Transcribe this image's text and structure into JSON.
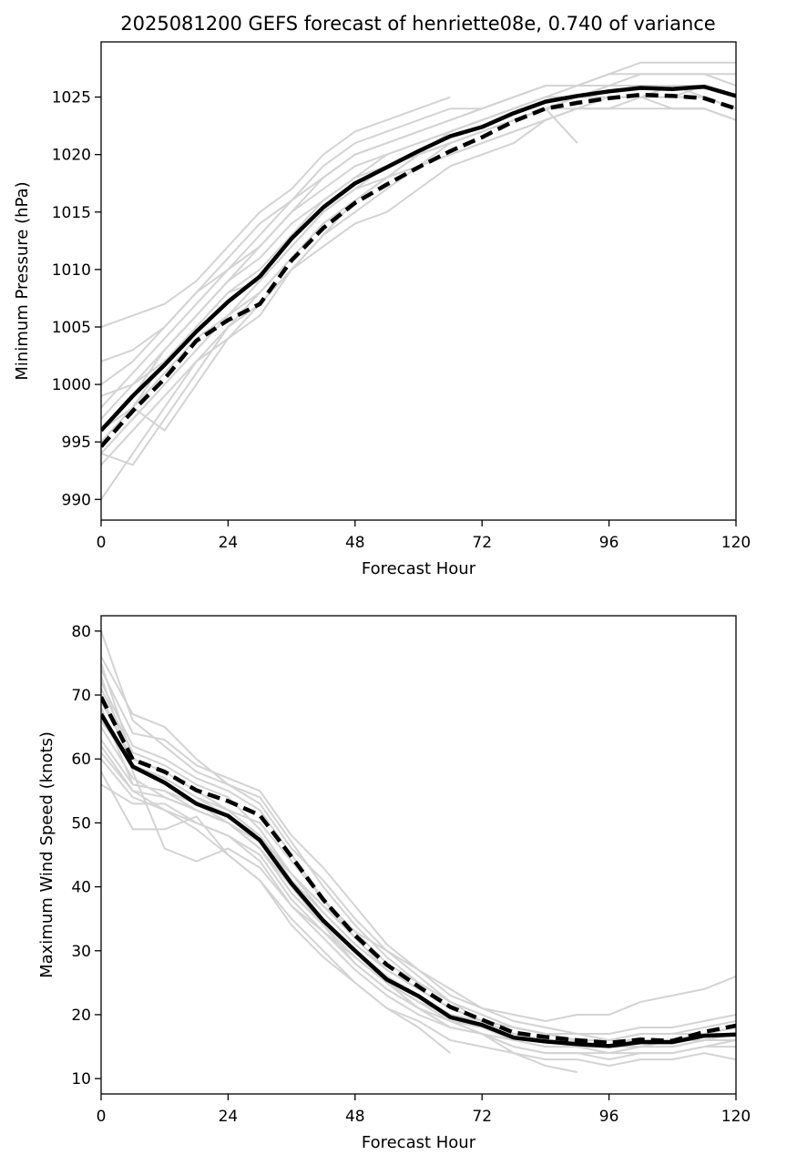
{
  "figure_title": "2025081200 GEFS forecast of henriette08e, 0.740 of variance",
  "colors": {
    "member": "#d3d3d3",
    "mean": "#000000",
    "axes": "#000000"
  },
  "chart_data": [
    {
      "type": "line",
      "xlabel": "Forecast Hour",
      "ylabel": "Minimum Pressure (hPa)",
      "xlim": [
        0,
        120
      ],
      "ylim": [
        988.2,
        1029.8
      ],
      "xticks": [
        0,
        24,
        48,
        72,
        96,
        120
      ],
      "yticks": [
        990,
        995,
        1000,
        1005,
        1010,
        1015,
        1020,
        1025
      ],
      "x": [
        0,
        6,
        12,
        18,
        24,
        30,
        36,
        42,
        48,
        54,
        60,
        66,
        72,
        78,
        84,
        90,
        96,
        102,
        108,
        114,
        120
      ],
      "series": [
        {
          "style": "solid",
          "values": [
            996,
            999,
            1001.7,
            1004.6,
            1007.2,
            1009.4,
            1012.7,
            1015.4,
            1017.5,
            1018.9,
            1020.3,
            1021.6,
            1022.4,
            1023.6,
            1024.6,
            1025.1,
            1025.5,
            1025.8,
            1025.7,
            1025.9,
            1025.1
          ]
        },
        {
          "style": "dashed",
          "values": [
            994.6,
            997.7,
            1000.5,
            1003.8,
            1005.6,
            1007,
            1010.8,
            1013.6,
            1015.8,
            1017.4,
            1018.9,
            1020.3,
            1021.5,
            1022.9,
            1024,
            1024.5,
            1024.9,
            1025.2,
            1025.1,
            1024.9,
            1024
          ]
        }
      ],
      "members": [
        [
          996,
          999,
          1003,
          1006,
          1009,
          1012,
          1015,
          1017,
          1019,
          1020,
          1021,
          1022,
          1023,
          1024,
          1025,
          1025,
          1026,
          1026,
          1026,
          1026,
          1025
        ],
        [
          994,
          997,
          1000,
          1003,
          1006,
          1008,
          1011,
          1014,
          1016,
          1018,
          1019,
          1021,
          1022,
          1023,
          1024,
          1024,
          1025,
          1025,
          1025,
          1025,
          1024
        ],
        [
          998,
          1001,
          1004,
          1007,
          1010,
          1013,
          1016,
          1018,
          1020,
          1021,
          1022,
          1023,
          1024,
          1025,
          1026,
          1026,
          1027,
          1027,
          1027,
          1027,
          1026
        ],
        [
          990,
          994,
          998,
          1002,
          1005,
          1007,
          1010,
          1013,
          1015,
          1017,
          1019,
          1020,
          1021,
          1022,
          1023,
          1024,
          1025,
          1025,
          1025,
          1026,
          1025
        ],
        [
          1005,
          1006,
          1007,
          1009,
          1012,
          1015,
          1017,
          1020,
          1022,
          1023,
          1024,
          1025,
          null,
          null,
          null,
          null,
          null,
          null,
          null,
          null,
          null
        ],
        [
          1002,
          1003,
          1005,
          1008,
          1010,
          1012,
          1015,
          1018,
          1020,
          1021,
          1022,
          1023,
          1024,
          1025,
          1026,
          1026,
          1027,
          1028,
          1028,
          1028,
          1028
        ],
        [
          993,
          996,
          999,
          1002,
          1004,
          1006,
          1010,
          1012,
          1014,
          1015,
          1017,
          1019,
          1020,
          1021,
          1023,
          1024,
          1024,
          1024,
          1024,
          1024,
          1023
        ],
        [
          997,
          1000,
          1002,
          1005,
          1008,
          1010,
          1013,
          1016,
          1018,
          1019,
          1020,
          1022,
          1023,
          1024,
          1025,
          1025,
          1026,
          1026,
          1026,
          1025,
          1024
        ],
        [
          995,
          998,
          1001,
          1004,
          1006,
          1009,
          1012,
          1015,
          1017,
          1018,
          1020,
          1021,
          1022,
          1023,
          1024,
          1021,
          null,
          null,
          null,
          null,
          null
        ],
        [
          999,
          1000,
          1003,
          1006,
          1009,
          1011,
          1014,
          1016,
          1018,
          1020,
          1021,
          1022,
          1023,
          1024,
          1025,
          1026,
          1026,
          1027,
          1027,
          1027,
          1027
        ],
        [
          994,
          993,
          997,
          1001,
          1005,
          1008,
          1011,
          1014,
          1016,
          1018,
          1020,
          1021,
          1022,
          1023,
          1024,
          1025,
          1025,
          1025,
          1026,
          1026,
          1025
        ],
        [
          996,
          998,
          996,
          1000,
          1004,
          1007,
          1010,
          1013,
          1016,
          1018,
          1019,
          1020,
          1021,
          1022,
          1023,
          1024,
          1024,
          1025,
          1025,
          1025,
          1024
        ],
        [
          1000,
          1002,
          1005,
          1008,
          1011,
          1014,
          1016,
          1019,
          1021,
          1022,
          1023,
          1024,
          1024,
          1025,
          1026,
          1026,
          1026,
          1026,
          1026,
          1026,
          1025
        ],
        [
          995,
          998,
          1002,
          1005,
          1008,
          1009,
          1012,
          1015,
          1017,
          1019,
          1020,
          1021,
          1022,
          1023,
          1024,
          1025,
          1025,
          1025,
          1024,
          1024,
          1023
        ]
      ]
    },
    {
      "type": "line",
      "xlabel": "Forecast Hour",
      "ylabel": "Maximum Wind Speed (knots)",
      "xlim": [
        0,
        120
      ],
      "ylim": [
        7.6,
        82.4
      ],
      "xticks": [
        0,
        24,
        48,
        72,
        96,
        120
      ],
      "yticks": [
        10,
        20,
        30,
        40,
        50,
        60,
        70,
        80
      ],
      "x": [
        0,
        6,
        12,
        18,
        24,
        30,
        36,
        42,
        48,
        54,
        60,
        66,
        72,
        78,
        84,
        90,
        96,
        102,
        108,
        114,
        120
      ],
      "series": [
        {
          "style": "solid",
          "values": [
            67,
            58.8,
            56.3,
            53,
            51.1,
            47.3,
            40.5,
            34.7,
            30,
            25.5,
            22.9,
            19.6,
            18.4,
            16.4,
            15.8,
            15.4,
            15.1,
            15.7,
            15.7,
            16.7,
            16.9
          ]
        },
        {
          "style": "dashed",
          "values": [
            69.7,
            59.9,
            58,
            55.1,
            53.4,
            51.2,
            44.7,
            38,
            32.4,
            27.8,
            24.4,
            21.2,
            19.2,
            17.2,
            16.5,
            16,
            15.6,
            16.1,
            15.9,
            17.3,
            18.3
          ]
        }
      ],
      "members": [
        [
          75,
          60,
          58,
          55,
          52,
          50,
          44,
          38,
          32,
          27,
          24,
          21,
          19,
          17,
          16,
          16,
          15,
          16,
          16,
          17,
          18
        ],
        [
          68,
          56,
          55,
          52,
          50,
          46,
          40,
          34,
          29,
          25,
          22,
          20,
          18,
          17,
          16,
          15,
          15,
          15,
          16,
          16,
          17
        ],
        [
          80,
          66,
          62,
          58,
          56,
          54,
          47,
          40,
          34,
          29,
          25,
          22,
          20,
          18,
          17,
          16,
          16,
          17,
          17,
          18,
          19
        ],
        [
          72,
          62,
          60,
          57,
          55,
          52,
          45,
          38,
          33,
          28,
          25,
          22,
          19,
          17,
          16,
          15,
          14,
          15,
          15,
          16,
          17
        ],
        [
          65,
          57,
          54,
          52,
          50,
          47,
          42,
          37,
          33,
          30,
          27,
          23,
          21,
          20,
          19,
          20,
          20,
          22,
          23,
          24,
          26
        ],
        [
          70,
          59,
          57,
          54,
          52,
          48,
          42,
          36,
          31,
          27,
          24,
          21,
          19,
          17,
          16,
          15,
          15,
          16,
          16,
          17,
          18
        ],
        [
          56,
          53,
          53,
          50,
          48,
          44,
          37,
          33,
          29,
          25,
          21,
          18,
          17,
          15,
          14,
          14,
          13,
          14,
          14,
          15,
          16
        ],
        [
          74,
          64,
          63,
          59,
          57,
          55,
          48,
          43,
          37,
          31,
          27,
          24,
          21,
          19,
          18,
          17,
          17,
          18,
          18,
          19,
          20
        ],
        [
          62,
          55,
          52,
          50,
          48,
          45,
          38,
          33,
          28,
          24,
          21,
          19,
          18,
          16,
          15,
          15,
          15,
          15,
          15,
          16,
          16
        ],
        [
          76,
          67,
          65,
          60,
          56,
          53,
          46,
          41,
          35,
          30,
          26,
          22,
          20,
          18,
          17,
          16,
          16,
          17,
          17,
          17,
          18
        ],
        [
          60,
          54,
          52,
          49,
          45,
          41,
          35,
          30,
          25,
          21,
          19,
          16,
          15,
          14,
          13,
          13,
          12,
          13,
          13,
          14,
          13
        ],
        [
          73,
          58,
          46,
          44,
          46,
          43,
          37,
          32,
          27,
          23,
          20,
          18,
          17,
          16,
          16,
          16,
          16,
          16,
          16,
          17,
          17
        ],
        [
          71,
          61,
          59,
          56,
          54,
          49,
          42,
          37,
          32,
          27,
          24,
          21,
          19,
          18,
          17,
          16,
          16,
          16,
          16,
          17,
          17
        ],
        [
          66,
          59,
          57,
          54,
          51,
          48,
          41,
          36,
          31,
          27,
          24,
          21,
          19,
          18,
          17,
          16,
          16,
          16,
          16,
          16,
          17
        ],
        [
          58,
          49,
          49,
          51,
          45,
          41,
          34,
          29,
          25,
          21,
          18,
          14,
          null,
          null,
          null,
          null,
          null,
          null,
          null,
          null,
          null
        ],
        [
          63,
          56,
          55,
          53,
          50,
          46,
          39,
          34,
          28,
          24,
          21,
          19,
          17,
          15,
          14,
          14,
          14,
          14,
          14,
          15,
          15
        ],
        [
          69,
          60,
          58,
          55,
          52,
          48,
          41,
          35,
          30,
          25,
          22,
          19,
          17,
          14,
          12,
          11,
          null,
          null,
          null,
          null,
          null
        ],
        [
          61,
          55,
          54,
          52,
          50,
          47,
          40,
          35,
          30,
          26,
          23,
          20,
          19,
          18,
          17,
          17,
          16,
          16,
          16,
          17,
          17
        ]
      ]
    }
  ]
}
